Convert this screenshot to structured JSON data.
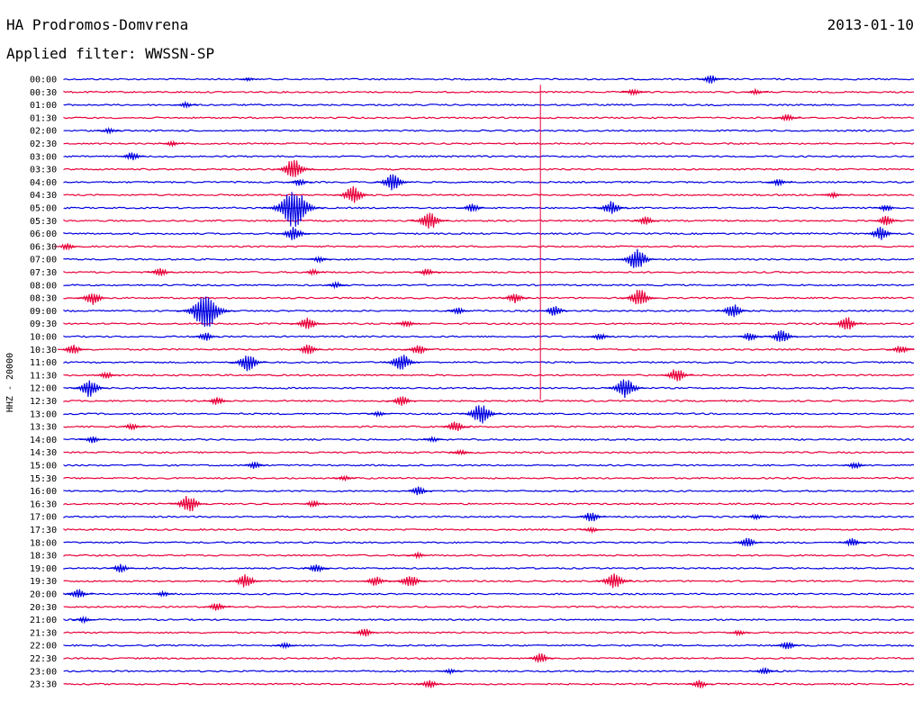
{
  "header": {
    "station": "HA Prodromos-Domvrena",
    "date": "2013-01-10",
    "filter": "Applied filter: WWSSN-SP"
  },
  "chart_data": {
    "type": "line",
    "side_label": "HHZ - 20000",
    "colors": {
      "trace_a": "#0000e0",
      "trace_b": "#e8003a"
    },
    "row_labels": [
      "00:00",
      "00:30",
      "01:00",
      "01:30",
      "02:00",
      "02:30",
      "03:00",
      "03:30",
      "04:00",
      "04:30",
      "05:00",
      "05:30",
      "06:00",
      "06:30",
      "07:00",
      "07:30",
      "08:00",
      "08:30",
      "09:00",
      "09:30",
      "10:00",
      "10:30",
      "11:00",
      "11:30",
      "12:00",
      "12:30",
      "13:00",
      "13:30",
      "14:00",
      "14:30",
      "15:00",
      "15:30",
      "16:00",
      "16:30",
      "17:00",
      "17:30",
      "18:00",
      "18:30",
      "19:00",
      "19:30",
      "20:00",
      "20:30",
      "21:00",
      "21:30",
      "22:00",
      "22:30",
      "23:00",
      "23:30"
    ],
    "x_range_minutes": [
      0,
      30
    ],
    "events": [
      {
        "row": 0,
        "minute": 22.8,
        "amplitude": 5
      },
      {
        "row": 0,
        "minute": 6.5,
        "amplitude": 2
      },
      {
        "row": 1,
        "minute": 20.1,
        "amplitude": 4
      },
      {
        "row": 1,
        "minute": 16.8,
        "amplitude": 350
      },
      {
        "row": 1,
        "minute": 24.4,
        "amplitude": 3
      },
      {
        "row": 2,
        "minute": 4.3,
        "amplitude": 3
      },
      {
        "row": 3,
        "minute": 25.5,
        "amplitude": 4
      },
      {
        "row": 4,
        "minute": 1.6,
        "amplitude": 3
      },
      {
        "row": 5,
        "minute": 3.8,
        "amplitude": 3
      },
      {
        "row": 6,
        "minute": 2.4,
        "amplitude": 5
      },
      {
        "row": 7,
        "minute": 8.1,
        "amplitude": 12
      },
      {
        "row": 8,
        "minute": 11.6,
        "amplitude": 10
      },
      {
        "row": 8,
        "minute": 8.3,
        "amplitude": 4
      },
      {
        "row": 8,
        "minute": 25.2,
        "amplitude": 4
      },
      {
        "row": 9,
        "minute": 10.2,
        "amplitude": 10
      },
      {
        "row": 9,
        "minute": 27.1,
        "amplitude": 3
      },
      {
        "row": 10,
        "minute": 8.1,
        "amplitude": 22
      },
      {
        "row": 10,
        "minute": 19.3,
        "amplitude": 8
      },
      {
        "row": 10,
        "minute": 14.4,
        "amplitude": 5
      },
      {
        "row": 10,
        "minute": 29.0,
        "amplitude": 4
      },
      {
        "row": 11,
        "minute": 12.9,
        "amplitude": 10
      },
      {
        "row": 11,
        "minute": 20.5,
        "amplitude": 5
      },
      {
        "row": 11,
        "minute": 29.0,
        "amplitude": 6
      },
      {
        "row": 12,
        "minute": 8.1,
        "amplitude": 8
      },
      {
        "row": 12,
        "minute": 28.8,
        "amplitude": 8
      },
      {
        "row": 13,
        "minute": 0.1,
        "amplitude": 4
      },
      {
        "row": 14,
        "minute": 20.2,
        "amplitude": 12
      },
      {
        "row": 14,
        "minute": 9.0,
        "amplitude": 3
      },
      {
        "row": 15,
        "minute": 3.4,
        "amplitude": 5
      },
      {
        "row": 15,
        "minute": 12.8,
        "amplitude": 4
      },
      {
        "row": 15,
        "minute": 8.8,
        "amplitude": 3
      },
      {
        "row": 16,
        "minute": 9.6,
        "amplitude": 3
      },
      {
        "row": 17,
        "minute": 15.9,
        "amplitude": 6
      },
      {
        "row": 17,
        "minute": 1.0,
        "amplitude": 8
      },
      {
        "row": 17,
        "minute": 20.3,
        "amplitude": 10
      },
      {
        "row": 18,
        "minute": 23.6,
        "amplitude": 8
      },
      {
        "row": 18,
        "minute": 17.3,
        "amplitude": 6
      },
      {
        "row": 18,
        "minute": 13.9,
        "amplitude": 4
      },
      {
        "row": 18,
        "minute": 5.0,
        "amplitude": 20
      },
      {
        "row": 19,
        "minute": 12.1,
        "amplitude": 4
      },
      {
        "row": 19,
        "minute": 8.6,
        "amplitude": 8
      },
      {
        "row": 19,
        "minute": 27.6,
        "amplitude": 8
      },
      {
        "row": 20,
        "minute": 25.3,
        "amplitude": 8
      },
      {
        "row": 20,
        "minute": 5.0,
        "amplitude": 5
      },
      {
        "row": 20,
        "minute": 24.2,
        "amplitude": 5
      },
      {
        "row": 20,
        "minute": 18.9,
        "amplitude": 4
      },
      {
        "row": 21,
        "minute": 0.3,
        "amplitude": 6
      },
      {
        "row": 21,
        "minute": 8.6,
        "amplitude": 6
      },
      {
        "row": 21,
        "minute": 12.5,
        "amplitude": 6
      },
      {
        "row": 21,
        "minute": 29.5,
        "amplitude": 5
      },
      {
        "row": 22,
        "minute": 6.5,
        "amplitude": 10
      },
      {
        "row": 22,
        "minute": 11.9,
        "amplitude": 10
      },
      {
        "row": 23,
        "minute": 21.6,
        "amplitude": 8
      },
      {
        "row": 23,
        "minute": 1.5,
        "amplitude": 4
      },
      {
        "row": 24,
        "minute": 0.9,
        "amplitude": 10
      },
      {
        "row": 24,
        "minute": 19.8,
        "amplitude": 12
      },
      {
        "row": 25,
        "minute": 5.4,
        "amplitude": 5
      },
      {
        "row": 25,
        "minute": 11.9,
        "amplitude": 6
      },
      {
        "row": 26,
        "minute": 14.7,
        "amplitude": 12
      },
      {
        "row": 26,
        "minute": 11.1,
        "amplitude": 3
      },
      {
        "row": 27,
        "minute": 13.8,
        "amplitude": 6
      },
      {
        "row": 27,
        "minute": 2.4,
        "amplitude": 4
      },
      {
        "row": 28,
        "minute": 1.0,
        "amplitude": 4
      },
      {
        "row": 28,
        "minute": 13.0,
        "amplitude": 3
      },
      {
        "row": 29,
        "minute": 14.0,
        "amplitude": 3
      },
      {
        "row": 30,
        "minute": 6.7,
        "amplitude": 4
      },
      {
        "row": 30,
        "minute": 27.9,
        "amplitude": 4
      },
      {
        "row": 31,
        "minute": 9.9,
        "amplitude": 3
      },
      {
        "row": 32,
        "minute": 12.5,
        "amplitude": 5
      },
      {
        "row": 33,
        "minute": 4.4,
        "amplitude": 10
      },
      {
        "row": 33,
        "minute": 8.8,
        "amplitude": 4
      },
      {
        "row": 34,
        "minute": 18.6,
        "amplitude": 6
      },
      {
        "row": 34,
        "minute": 24.4,
        "amplitude": 3
      },
      {
        "row": 35,
        "minute": 18.6,
        "amplitude": 3
      },
      {
        "row": 36,
        "minute": 27.8,
        "amplitude": 5
      },
      {
        "row": 36,
        "minute": 24.1,
        "amplitude": 6
      },
      {
        "row": 37,
        "minute": 12.5,
        "amplitude": 3
      },
      {
        "row": 38,
        "minute": 2.0,
        "amplitude": 5
      },
      {
        "row": 38,
        "minute": 8.9,
        "amplitude": 5
      },
      {
        "row": 39,
        "minute": 6.4,
        "amplitude": 8
      },
      {
        "row": 39,
        "minute": 12.2,
        "amplitude": 8
      },
      {
        "row": 39,
        "minute": 19.4,
        "amplitude": 10
      },
      {
        "row": 39,
        "minute": 11.0,
        "amplitude": 6
      },
      {
        "row": 40,
        "minute": 0.5,
        "amplitude": 6
      },
      {
        "row": 40,
        "minute": 3.5,
        "amplitude": 3
      },
      {
        "row": 41,
        "minute": 5.4,
        "amplitude": 5
      },
      {
        "row": 42,
        "minute": 0.7,
        "amplitude": 3
      },
      {
        "row": 43,
        "minute": 10.6,
        "amplitude": 5
      },
      {
        "row": 43,
        "minute": 23.8,
        "amplitude": 3
      },
      {
        "row": 44,
        "minute": 25.5,
        "amplitude": 5
      },
      {
        "row": 44,
        "minute": 7.8,
        "amplitude": 3
      },
      {
        "row": 45,
        "minute": 16.8,
        "amplitude": 6
      },
      {
        "row": 46,
        "minute": 24.7,
        "amplitude": 4
      },
      {
        "row": 46,
        "minute": 13.6,
        "amplitude": 3
      },
      {
        "row": 47,
        "minute": 12.9,
        "amplitude": 5
      },
      {
        "row": 47,
        "minute": 22.4,
        "amplitude": 5
      }
    ]
  }
}
